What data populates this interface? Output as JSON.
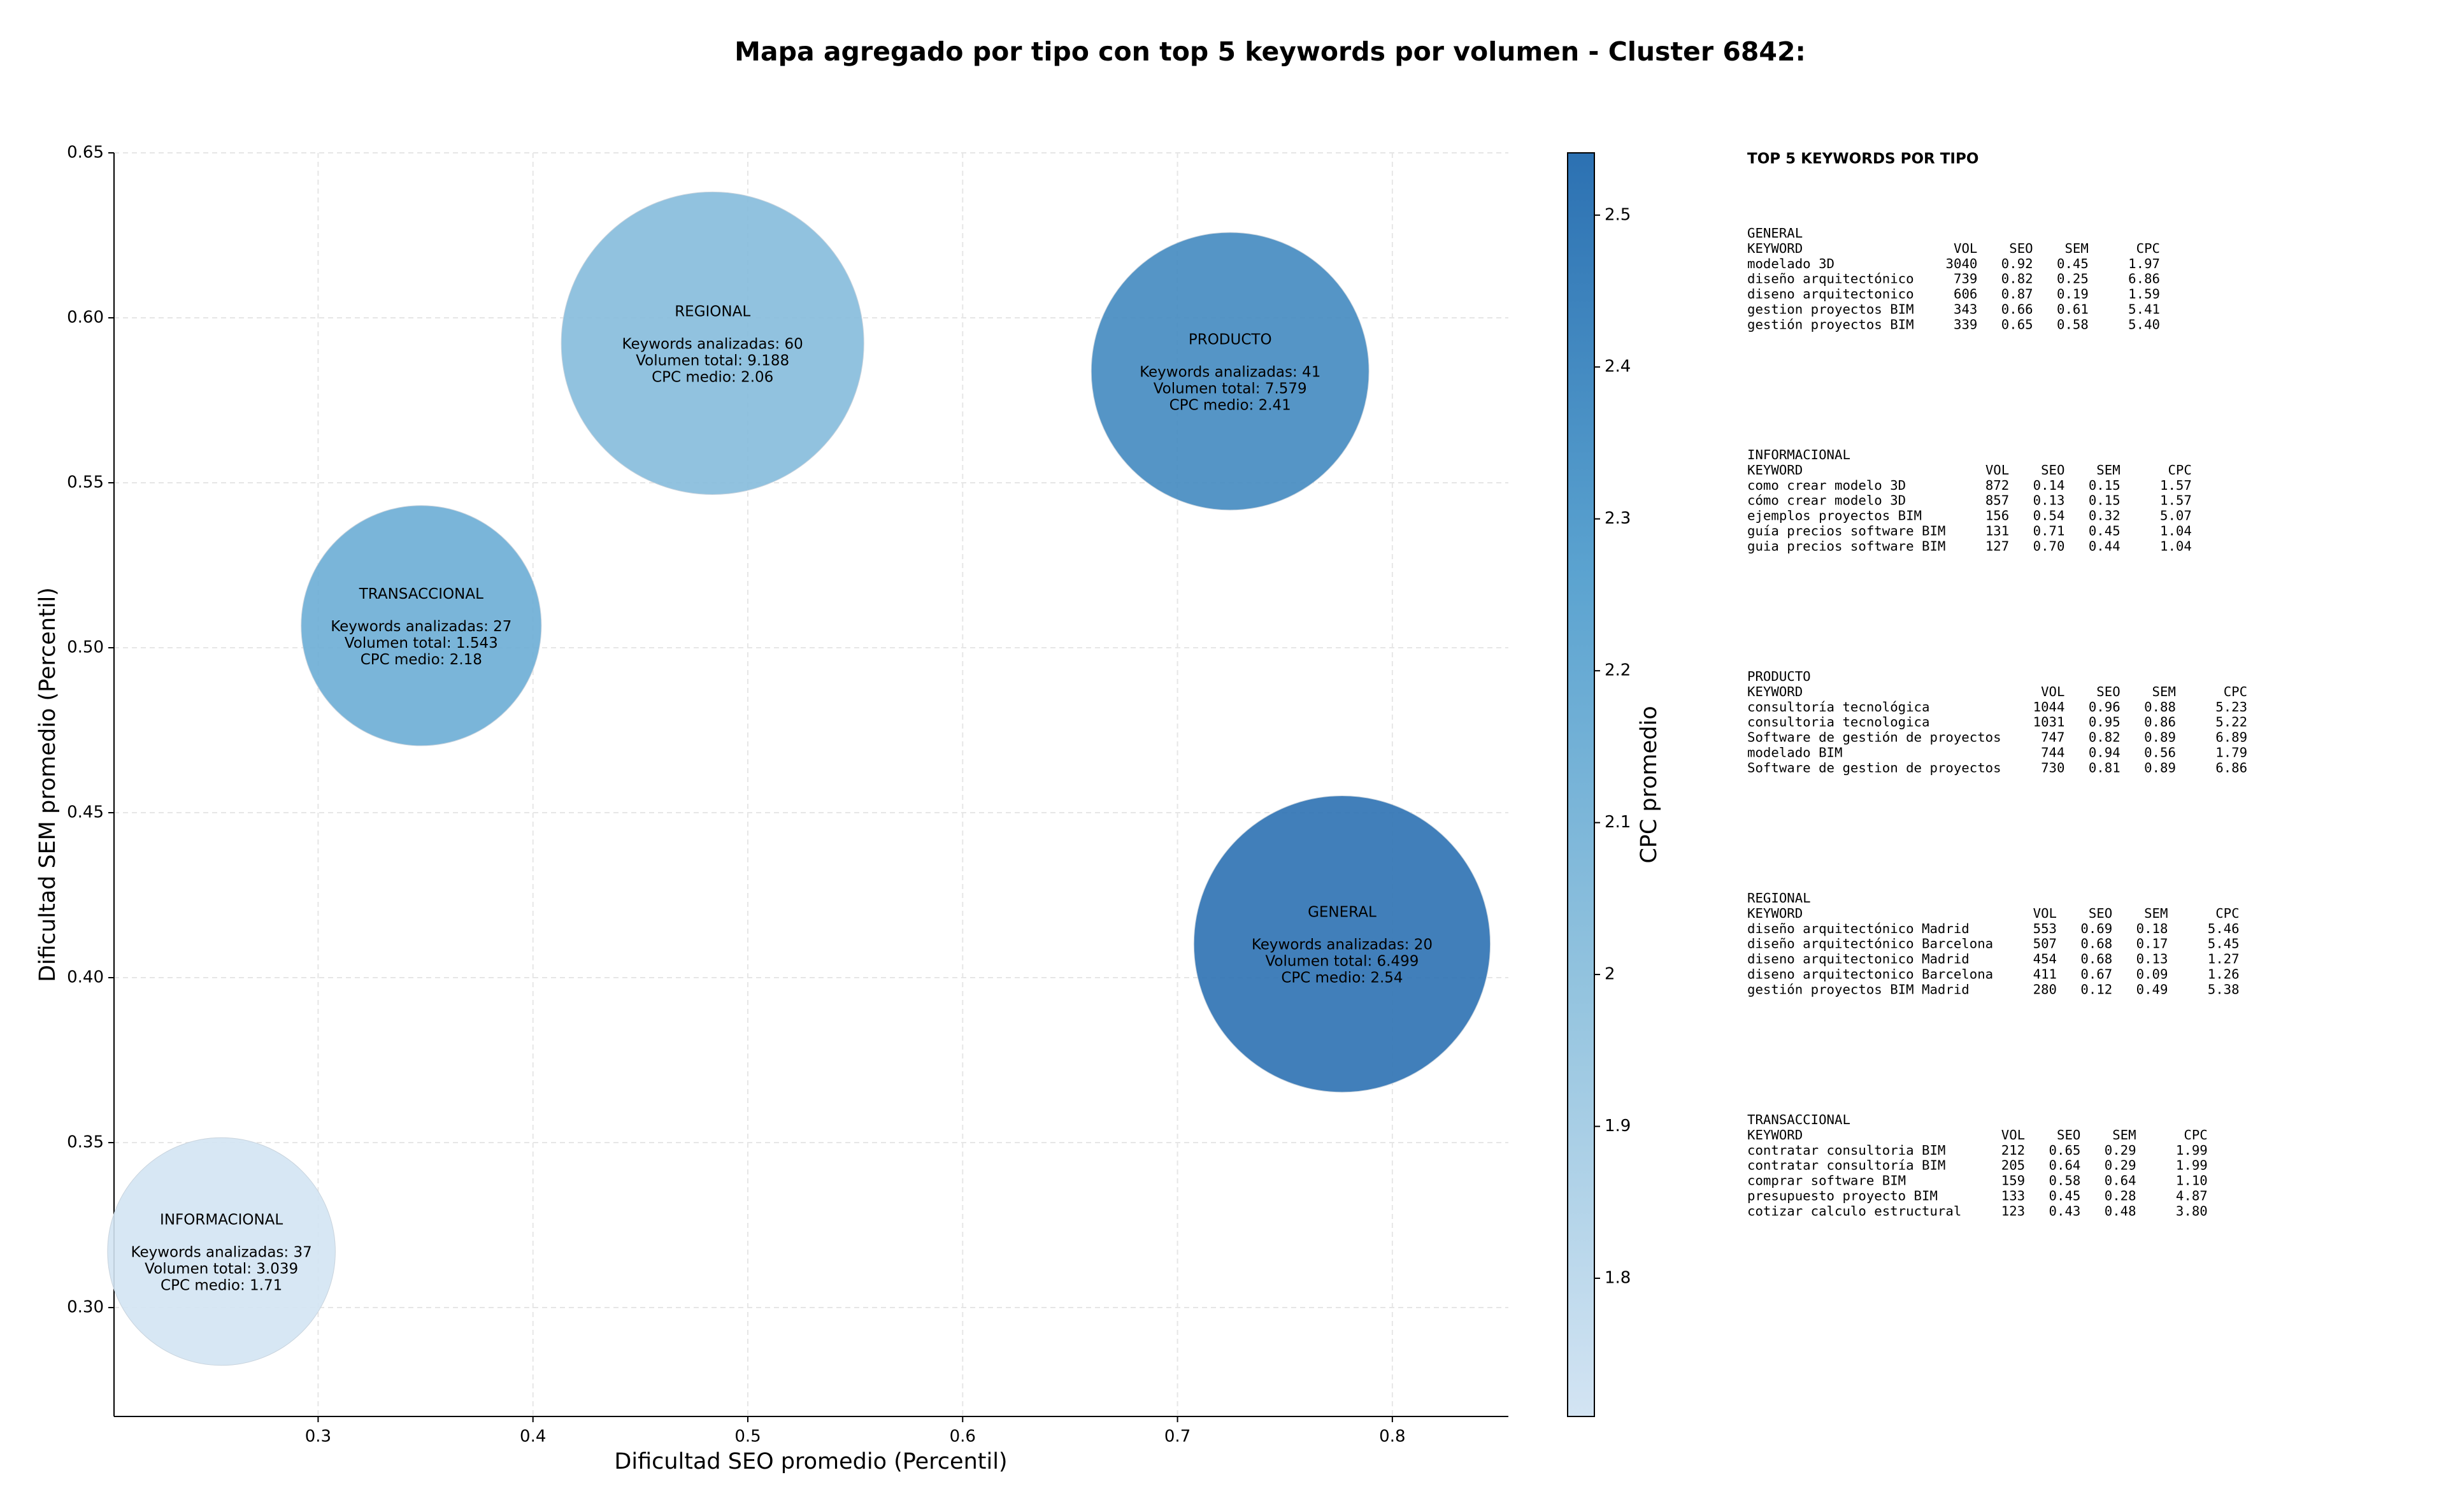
{
  "chart_data": {
    "type": "bubble",
    "title": "Mapa agregado por tipo con top 5 keywords por volumen - Cluster 6842:",
    "x_label": "Dificultad SEO promedio (Percentil)",
    "y_label": "Dificultad SEM promedio (Percentil)",
    "colorbar_label": "CPC promedio",
    "names": [
      "REGIONAL",
      "PRODUCTO",
      "TRANSACCIONAL",
      "GENERAL",
      "INFORMACIONAL"
    ],
    "x": [
      0.4836,
      0.7245,
      0.348,
      0.7766,
      0.255
    ],
    "y": [
      0.5923,
      0.5838,
      0.5067,
      0.4102,
      0.317
    ],
    "sizes": [
      9409,
      7921,
      5929,
      9025,
      5329
    ],
    "cpc": [
      2.06,
      2.41,
      2.18,
      2.54,
      1.71
    ],
    "cpc_labels": [
      "CPC medio: 2.06",
      "CPC medio: 2.41",
      "CPC medio: 2.18",
      "CPC medio: 2.54",
      "CPC medio: 1.71"
    ],
    "keyword_labels": [
      "Keywords analizadas: 60",
      "Keywords analizadas: 41",
      "Keywords analizadas: 27",
      "Keywords analizadas: 20",
      "Keywords analizadas: 37"
    ],
    "volume_labels": [
      "Volumen total: 9.188",
      "Volumen total: 7.579",
      "Volumen total: 1.543",
      "Volumen total: 6.499",
      "Volumen total: 3.039"
    ],
    "xlim": [
      0.205,
      0.854
    ],
    "ylim": [
      0.267,
      0.65
    ],
    "xticks": [
      0.3,
      0.4,
      0.5,
      0.6,
      0.7,
      0.8
    ],
    "yticks": [
      {
        "value": 0.3,
        "label": "0.30"
      },
      0.35,
      {
        "value": 0.4,
        "label": "0.40"
      },
      0.45,
      {
        "value": 0.5,
        "label": "0.50"
      },
      0.55,
      {
        "value": 0.6,
        "label": "0.60"
      },
      0.65
    ],
    "clim": [
      1.709,
      2.541
    ],
    "cticks": [
      1.8,
      1.9,
      2.0,
      2.1,
      2.2,
      2.3,
      2.4,
      2.5
    ],
    "colormap": [
      "#d3e4f3",
      "#94c4df",
      "#5ba3d0",
      "#2c71b2"
    ],
    "grid": true,
    "keyword_table": {
      "title": "TOP 5 KEYWORDS POR TIPO",
      "header": [
        "KEYWORD",
        "VOL",
        "SEO",
        "SEM",
        "CPC"
      ],
      "groups": [
        {
          "name": "GENERAL",
          "rows": [
            [
              "modelado 3D",
              "3040",
              "0.92",
              "0.45",
              "1.97"
            ],
            [
              "diseño arquitectónico",
              "739",
              "0.82",
              "0.25",
              "6.86"
            ],
            [
              "diseno arquitectonico",
              "606",
              "0.87",
              "0.19",
              "1.59"
            ],
            [
              "gestion proyectos BIM",
              "343",
              "0.66",
              "0.61",
              "5.41"
            ],
            [
              "gestión proyectos BIM",
              "339",
              "0.65",
              "0.58",
              "5.40"
            ]
          ]
        },
        {
          "name": "INFORMACIONAL",
          "rows": [
            [
              "como crear modelo 3D",
              "872",
              "0.14",
              "0.15",
              "1.57"
            ],
            [
              "cómo crear modelo 3D",
              "857",
              "0.13",
              "0.15",
              "1.57"
            ],
            [
              "ejemplos proyectos BIM",
              "156",
              "0.54",
              "0.32",
              "5.07"
            ],
            [
              "guía precios software BIM",
              "131",
              "0.71",
              "0.45",
              "1.04"
            ],
            [
              "guia precios software BIM",
              "127",
              "0.70",
              "0.44",
              "1.04"
            ]
          ]
        },
        {
          "name": "PRODUCTO",
          "rows": [
            [
              "consultoría tecnológica",
              "1044",
              "0.96",
              "0.88",
              "5.23"
            ],
            [
              "consultoria tecnologica",
              "1031",
              "0.95",
              "0.86",
              "5.22"
            ],
            [
              "Software de gestión de proyectos",
              "747",
              "0.82",
              "0.89",
              "6.89"
            ],
            [
              "modelado BIM",
              "744",
              "0.94",
              "0.56",
              "1.79"
            ],
            [
              "Software de gestion de proyectos",
              "730",
              "0.81",
              "0.89",
              "6.86"
            ]
          ]
        },
        {
          "name": "REGIONAL",
          "rows": [
            [
              "diseño arquitectónico Madrid",
              "553",
              "0.69",
              "0.18",
              "5.46"
            ],
            [
              "diseño arquitectónico Barcelona",
              "507",
              "0.68",
              "0.17",
              "5.45"
            ],
            [
              "diseno arquitectonico Madrid",
              "454",
              "0.68",
              "0.13",
              "1.27"
            ],
            [
              "diseno arquitectonico Barcelona",
              "411",
              "0.67",
              "0.09",
              "1.26"
            ],
            [
              "gestión proyectos BIM Madrid",
              "280",
              "0.12",
              "0.49",
              "5.38"
            ]
          ]
        },
        {
          "name": "TRANSACCIONAL",
          "rows": [
            [
              "contratar consultoria BIM",
              "212",
              "0.65",
              "0.29",
              "1.99"
            ],
            [
              "contratar consultoría BIM",
              "205",
              "0.64",
              "0.29",
              "1.99"
            ],
            [
              "comprar software BIM",
              "159",
              "0.58",
              "0.64",
              "1.10"
            ],
            [
              "presupuesto proyecto BIM",
              "133",
              "0.45",
              "0.28",
              "4.87"
            ],
            [
              "cotizar calculo estructural",
              "123",
              "0.43",
              "0.48",
              "3.80"
            ]
          ]
        }
      ]
    }
  }
}
